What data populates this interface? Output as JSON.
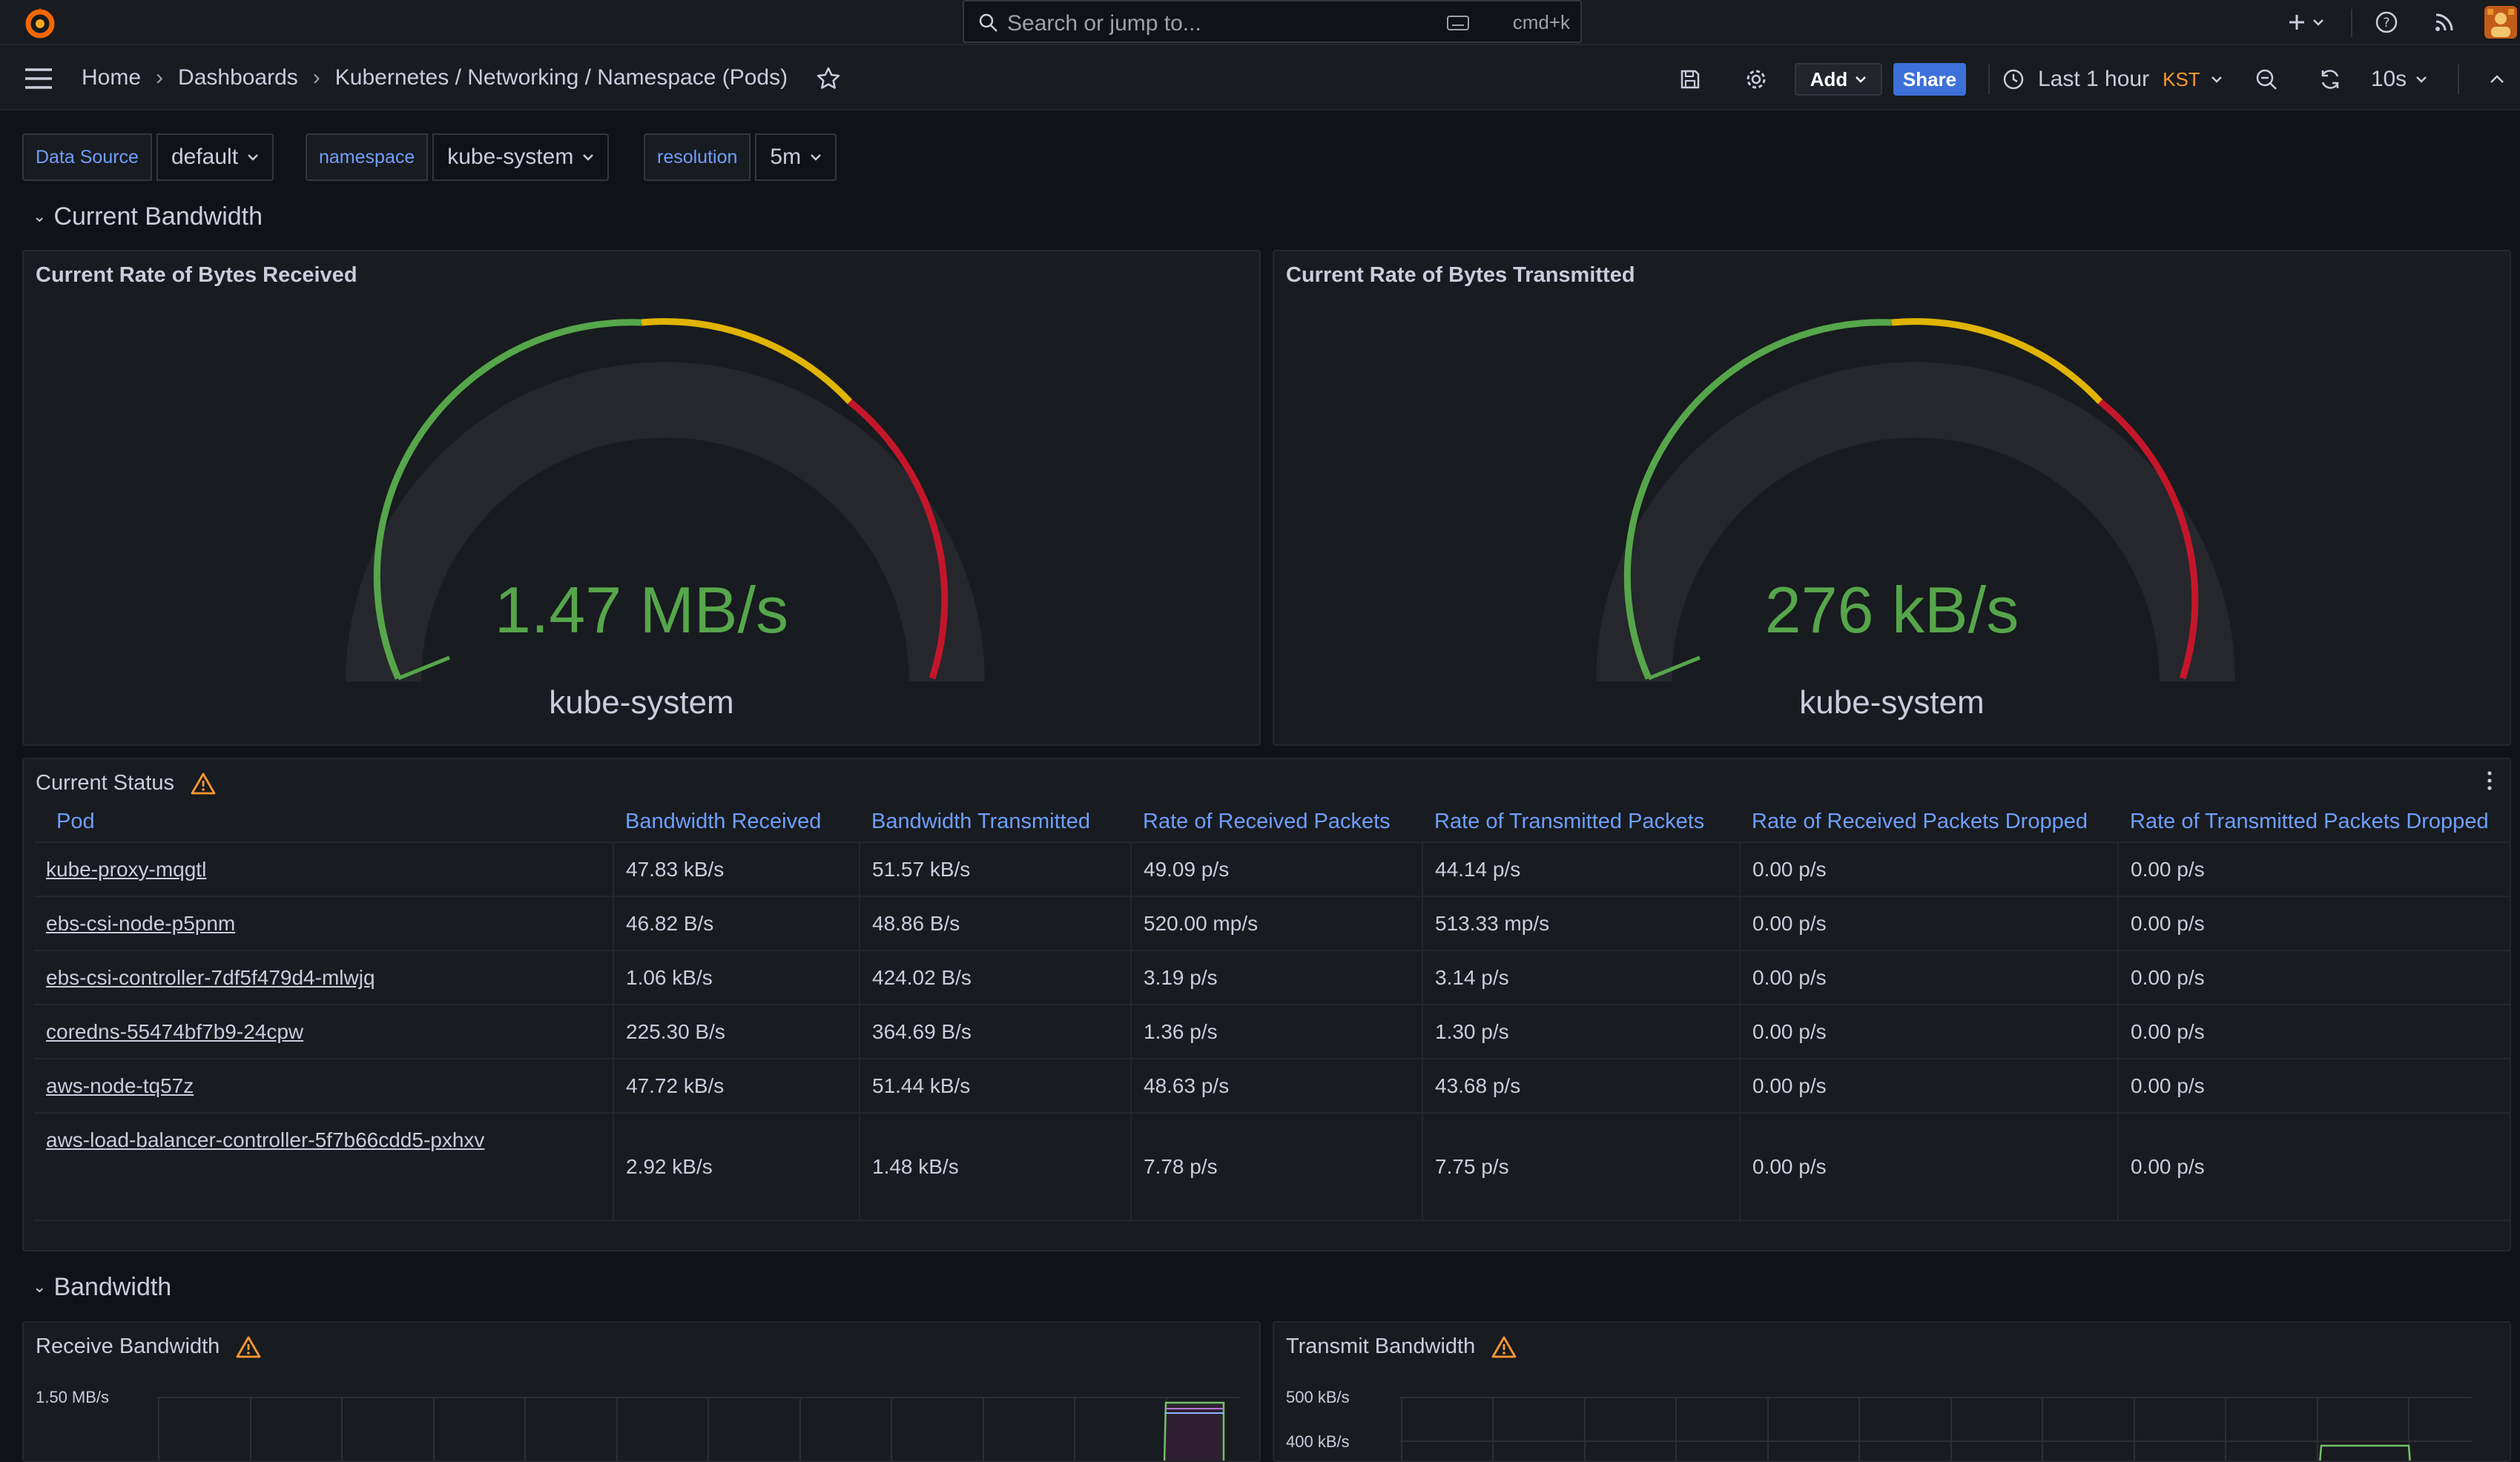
{
  "search": {
    "placeholder": "Search or jump to...",
    "shortcut": "cmd+k"
  },
  "breadcrumb": [
    "Home",
    "Dashboards",
    "Kubernetes / Networking / Namespace (Pods)"
  ],
  "toolbar": {
    "add_label": "Add",
    "share_label": "Share",
    "time_range": "Last 1 hour",
    "timezone": "KST",
    "refresh_interval": "10s"
  },
  "variables": [
    {
      "label": "Data Source",
      "value": "default"
    },
    {
      "label": "namespace",
      "value": "kube-system"
    },
    {
      "label": "resolution",
      "value": "5m"
    }
  ],
  "rows": {
    "current_bandwidth": "Current Bandwidth",
    "bandwidth": "Bandwidth"
  },
  "gauges": [
    {
      "title": "Current Rate of Bytes Received",
      "value": "1.47 MB/s",
      "name": "kube-system"
    },
    {
      "title": "Current Rate of Bytes Transmitted",
      "value": "276 kB/s",
      "name": "kube-system"
    }
  ],
  "status": {
    "title": "Current Status",
    "columns": [
      "Pod",
      "Bandwidth Received",
      "Bandwidth Transmitted",
      "Rate of Received Packets",
      "Rate of Transmitted Packets",
      "Rate of Received Packets Dropped",
      "Rate of Transmitted Packets Dropped"
    ],
    "rows": [
      [
        "kube-proxy-mqgtl",
        "47.83 kB/s",
        "51.57 kB/s",
        "49.09 p/s",
        "44.14 p/s",
        "0.00 p/s",
        "0.00 p/s"
      ],
      [
        "ebs-csi-node-p5pnm",
        "46.82 B/s",
        "48.86 B/s",
        "520.00 mp/s",
        "513.33 mp/s",
        "0.00 p/s",
        "0.00 p/s"
      ],
      [
        "ebs-csi-controller-7df5f479d4-mlwjq",
        "1.06 kB/s",
        "424.02 B/s",
        "3.19 p/s",
        "3.14 p/s",
        "0.00 p/s",
        "0.00 p/s"
      ],
      [
        "coredns-55474bf7b9-24cpw",
        "225.30 B/s",
        "364.69 B/s",
        "1.36 p/s",
        "1.30 p/s",
        "0.00 p/s",
        "0.00 p/s"
      ],
      [
        "aws-node-tq57z",
        "47.72 kB/s",
        "51.44 kB/s",
        "48.63 p/s",
        "43.68 p/s",
        "0.00 p/s",
        "0.00 p/s"
      ],
      [
        "aws-load-balancer-controller-5f7b66cdd5-pxhxv",
        "2.92 kB/s",
        "1.48 kB/s",
        "7.78 p/s",
        "7.75 p/s",
        "0.00 p/s",
        "0.00 p/s"
      ]
    ]
  },
  "bandwidth_panels": [
    {
      "title": "Receive Bandwidth",
      "y_ticks": [
        "1.50 MB/s"
      ]
    },
    {
      "title": "Transmit Bandwidth",
      "y_ticks": [
        "500 kB/s",
        "400 kB/s"
      ]
    }
  ],
  "colors": {
    "accent": "#3d71d9",
    "green": "#56a64b",
    "yellow": "#e0b400",
    "red": "#c4162a",
    "link": "#6e9fff"
  }
}
